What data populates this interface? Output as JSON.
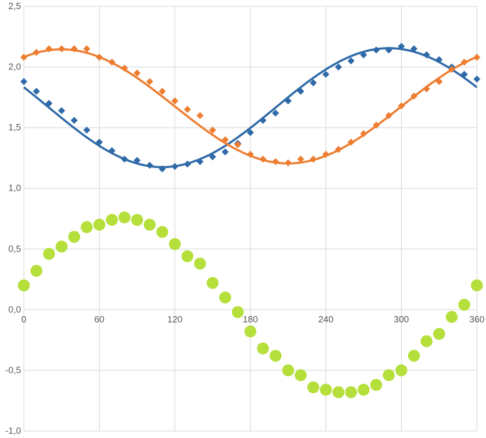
{
  "chart_data": {
    "type": "scatter",
    "title": "",
    "xlabel": "",
    "ylabel": "",
    "xlim": [
      0,
      360
    ],
    "ylim": [
      -1.0,
      2.5
    ],
    "x_ticks": [
      0,
      60,
      120,
      180,
      240,
      300,
      360
    ],
    "x_tick_labels": [
      "0",
      "60",
      "120",
      "180",
      "240",
      "300",
      "360"
    ],
    "y_ticks": [
      -1.0,
      -0.5,
      0.0,
      0.5,
      1.0,
      1.5,
      2.0,
      2.5
    ],
    "y_tick_labels": [
      "-1,0",
      "-0,5",
      "0,0",
      "0,5",
      "1,0",
      "1,5",
      "2,0",
      "2,5"
    ],
    "grid": true,
    "legend": "none",
    "colors": {
      "blue": "#2e6aa8",
      "orange": "#ed7d31",
      "green": "#b5df3a",
      "grid": "#d9d9d9",
      "text": "#595959"
    },
    "series": [
      {
        "marker": "diamond",
        "color": "#2e6aa8",
        "x": [
          0,
          10,
          20,
          30,
          40,
          50,
          60,
          70,
          80,
          90,
          100,
          110,
          120,
          130,
          140,
          150,
          160,
          170,
          180,
          190,
          200,
          210,
          220,
          230,
          240,
          250,
          260,
          270,
          280,
          290,
          300,
          310,
          320,
          330,
          340,
          350,
          360
        ],
        "values": [
          1.88,
          1.8,
          1.7,
          1.64,
          1.56,
          1.48,
          1.38,
          1.31,
          1.24,
          1.23,
          1.19,
          1.16,
          1.18,
          1.2,
          1.22,
          1.26,
          1.3,
          1.37,
          1.46,
          1.56,
          1.62,
          1.72,
          1.8,
          1.87,
          1.94,
          2.0,
          2.05,
          2.1,
          2.14,
          2.14,
          2.17,
          2.15,
          2.1,
          2.06,
          2.0,
          1.94,
          1.9
        ]
      },
      {
        "marker": "diamond",
        "color": "#ed7d31",
        "x": [
          0,
          10,
          20,
          30,
          40,
          50,
          60,
          70,
          80,
          90,
          100,
          110,
          120,
          130,
          140,
          150,
          160,
          170,
          180,
          190,
          200,
          210,
          220,
          230,
          240,
          250,
          260,
          270,
          280,
          290,
          300,
          310,
          320,
          330,
          340,
          350,
          360
        ],
        "values": [
          2.08,
          2.12,
          2.15,
          2.15,
          2.15,
          2.15,
          2.08,
          2.04,
          1.99,
          1.95,
          1.88,
          1.8,
          1.72,
          1.65,
          1.6,
          1.48,
          1.4,
          1.36,
          1.28,
          1.24,
          1.22,
          1.21,
          1.24,
          1.24,
          1.28,
          1.32,
          1.38,
          1.45,
          1.52,
          1.6,
          1.68,
          1.76,
          1.82,
          1.88,
          1.98,
          2.04,
          2.08
        ]
      },
      {
        "marker": "circle",
        "color": "#b5df3a",
        "x": [
          0,
          10,
          20,
          30,
          40,
          50,
          60,
          70,
          80,
          90,
          100,
          110,
          120,
          130,
          140,
          150,
          160,
          170,
          180,
          190,
          200,
          210,
          220,
          230,
          240,
          250,
          260,
          270,
          280,
          290,
          300,
          310,
          320,
          330,
          340,
          350,
          360
        ],
        "values": [
          0.2,
          0.32,
          0.46,
          0.52,
          0.6,
          0.68,
          0.7,
          0.74,
          0.76,
          0.74,
          0.7,
          0.64,
          0.54,
          0.44,
          0.38,
          0.22,
          0.1,
          -0.02,
          -0.18,
          -0.32,
          -0.38,
          -0.5,
          -0.54,
          -0.64,
          -0.66,
          -0.68,
          -0.68,
          -0.66,
          -0.62,
          -0.54,
          -0.5,
          -0.38,
          -0.26,
          -0.2,
          -0.06,
          0.04,
          0.2
        ]
      }
    ],
    "trendlines": [
      {
        "color": "#2e6aa8",
        "kind": "sinusoidal",
        "mean": 1.665,
        "amplitude": 0.49,
        "peak_x": 290
      },
      {
        "color": "#ed7d31",
        "kind": "sinusoidal",
        "mean": 1.675,
        "amplitude": 0.47,
        "peak_x": 30
      }
    ]
  }
}
